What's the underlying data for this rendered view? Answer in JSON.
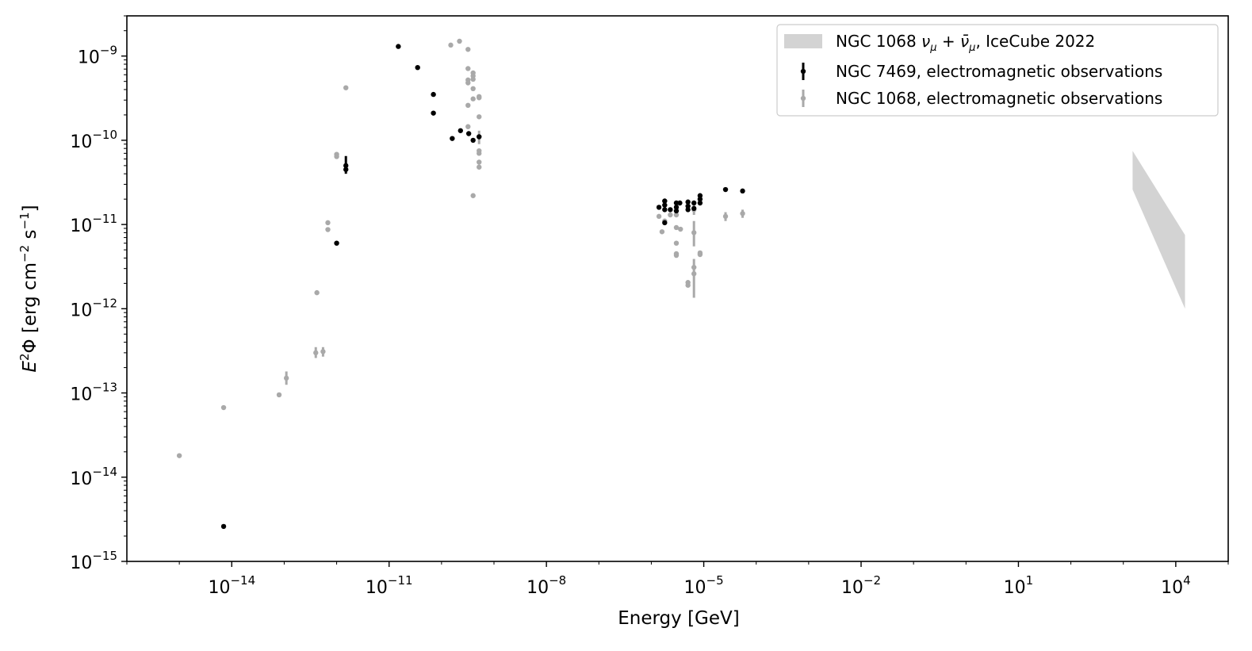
{
  "chart_data": {
    "type": "scatter",
    "title": "",
    "xlabel": "Energy [GeV]",
    "ylabel": "E²Φ [erg cm⁻² s⁻¹]",
    "xscale": "log",
    "yscale": "log",
    "xlim": [
      1e-16,
      100000.0
    ],
    "ylim": [
      1e-15,
      3e-09
    ],
    "grid": false,
    "legend_position": "top-right",
    "x_tick_labels": [
      "10^-14",
      "10^-11",
      "10^-8",
      "10^-5",
      "10^-2",
      "10^1",
      "10^4"
    ],
    "y_tick_labels": [
      "10^-15",
      "10^-14",
      "10^-13",
      "10^-12",
      "10^-11",
      "10^-10",
      "10^-9"
    ],
    "band": {
      "name": "NGC 1068 ν_μ + ν̄_μ, IceCube 2022",
      "color": "#d3d3d3",
      "x": [
        1500.0,
        15000.0
      ],
      "upper": [
        7.5e-11,
        7.5e-12
      ],
      "lower": [
        2.6e-11,
        1e-12
      ]
    },
    "series": [
      {
        "name": "NGC 7469, electromagnetic observations",
        "color": "#000000",
        "points": [
          {
            "x": 7e-15,
            "y": 2.6e-15
          },
          {
            "x": 1e-12,
            "y": 6e-12
          },
          {
            "x": 1.5e-12,
            "y": 5e-11,
            "ylo": 4e-11,
            "yhi": 6.5e-11
          },
          {
            "x": 1.5e-12,
            "y": 4.5e-11
          },
          {
            "x": 1.5e-11,
            "y": 1.3e-09
          },
          {
            "x": 3.5e-11,
            "y": 7.3e-10
          },
          {
            "x": 7e-11,
            "y": 3.5e-10
          },
          {
            "x": 7e-11,
            "y": 2.1e-10
          },
          {
            "x": 1.6e-10,
            "y": 1.05e-10
          },
          {
            "x": 2.3e-10,
            "y": 1.3e-10
          },
          {
            "x": 3.3e-10,
            "y": 1.2e-10
          },
          {
            "x": 4e-10,
            "y": 1e-10
          },
          {
            "x": 5.2e-10,
            "y": 1.1e-10
          },
          {
            "x": 1.4e-06,
            "y": 1.6e-11
          },
          {
            "x": 1.8e-06,
            "y": 1.9e-11
          },
          {
            "x": 1.8e-06,
            "y": 1.7e-11
          },
          {
            "x": 1.8e-06,
            "y": 1.5e-11
          },
          {
            "x": 1.8e-06,
            "y": 1.05e-11
          },
          {
            "x": 2.3e-06,
            "y": 1.5e-11
          },
          {
            "x": 3e-06,
            "y": 1.8e-11
          },
          {
            "x": 3e-06,
            "y": 1.6e-11
          },
          {
            "x": 3e-06,
            "y": 1.45e-11
          },
          {
            "x": 3.5e-06,
            "y": 1.8e-11
          },
          {
            "x": 5e-06,
            "y": 1.85e-11
          },
          {
            "x": 5e-06,
            "y": 1.65e-11
          },
          {
            "x": 5e-06,
            "y": 1.5e-11
          },
          {
            "x": 6.5e-06,
            "y": 1.8e-11
          },
          {
            "x": 6.5e-06,
            "y": 1.55e-11
          },
          {
            "x": 8.5e-06,
            "y": 2.2e-11
          },
          {
            "x": 8.5e-06,
            "y": 2e-11
          },
          {
            "x": 8.5e-06,
            "y": 1.8e-11
          },
          {
            "x": 2.6e-05,
            "y": 2.6e-11
          },
          {
            "x": 5.5e-05,
            "y": 2.5e-11
          }
        ]
      },
      {
        "name": "NGC 1068, electromagnetic observations",
        "color": "#a9a9a9",
        "points": [
          {
            "x": 1e-15,
            "y": 1.8e-14
          },
          {
            "x": 7e-15,
            "y": 6.7e-14
          },
          {
            "x": 8e-14,
            "y": 9.5e-14
          },
          {
            "x": 1.1e-13,
            "y": 1.5e-13,
            "ylo": 1.25e-13,
            "yhi": 1.8e-13
          },
          {
            "x": 4e-13,
            "y": 3e-13,
            "ylo": 2.6e-13,
            "yhi": 3.5e-13
          },
          {
            "x": 5.5e-13,
            "y": 3.1e-13,
            "ylo": 2.7e-13,
            "yhi": 3.5e-13
          },
          {
            "x": 4.2e-13,
            "y": 1.55e-12
          },
          {
            "x": 6.8e-13,
            "y": 1.05e-11
          },
          {
            "x": 6.8e-13,
            "y": 8.7e-12
          },
          {
            "x": 1e-12,
            "y": 6.8e-11
          },
          {
            "x": 1e-12,
            "y": 6.4e-11
          },
          {
            "x": 1.5e-12,
            "y": 4.2e-10
          },
          {
            "x": 1.5e-10,
            "y": 1.35e-09
          },
          {
            "x": 2.2e-10,
            "y": 1.5e-09
          },
          {
            "x": 3.2e-10,
            "y": 1.2e-09
          },
          {
            "x": 3.2e-10,
            "y": 7.1e-10
          },
          {
            "x": 3.2e-10,
            "y": 5.2e-10
          },
          {
            "x": 3.2e-10,
            "y": 4.8e-10
          },
          {
            "x": 3.2e-10,
            "y": 2.6e-10
          },
          {
            "x": 3.2e-10,
            "y": 1.45e-10
          },
          {
            "x": 4e-10,
            "y": 6.3e-10
          },
          {
            "x": 4e-10,
            "y": 5.8e-10
          },
          {
            "x": 4e-10,
            "y": 5.3e-10
          },
          {
            "x": 4e-10,
            "y": 4.1e-10
          },
          {
            "x": 4e-10,
            "y": 3.1e-10
          },
          {
            "x": 4e-10,
            "y": 2.2e-11
          },
          {
            "x": 5.2e-10,
            "y": 3.3e-10
          },
          {
            "x": 5.2e-10,
            "y": 3.2e-10
          },
          {
            "x": 5.2e-10,
            "y": 1.9e-10
          },
          {
            "x": 5.2e-10,
            "y": 1.1e-10,
            "ylo": 9e-11,
            "yhi": 1.3e-10
          },
          {
            "x": 5.2e-10,
            "y": 7.5e-11
          },
          {
            "x": 5.2e-10,
            "y": 7e-11
          },
          {
            "x": 5.2e-10,
            "y": 5.5e-11
          },
          {
            "x": 5.2e-10,
            "y": 4.8e-11
          },
          {
            "x": 1.4e-06,
            "y": 1.25e-11
          },
          {
            "x": 1.6e-06,
            "y": 8.2e-12
          },
          {
            "x": 1.8e-06,
            "y": 1.1e-11
          },
          {
            "x": 2.3e-06,
            "y": 1.3e-11
          },
          {
            "x": 3e-06,
            "y": 1.3e-11
          },
          {
            "x": 3e-06,
            "y": 9.2e-12
          },
          {
            "x": 3e-06,
            "y": 6e-12
          },
          {
            "x": 3e-06,
            "y": 4.5e-12
          },
          {
            "x": 3e-06,
            "y": 4.3e-12
          },
          {
            "x": 3.6e-06,
            "y": 8.8e-12
          },
          {
            "x": 5e-06,
            "y": 2.05e-12
          },
          {
            "x": 5e-06,
            "y": 1.9e-12
          },
          {
            "x": 6.5e-06,
            "y": 1.5e-11,
            "ylo": 1.3e-11,
            "yhi": 1.75e-11
          },
          {
            "x": 6.5e-06,
            "y": 8e-12,
            "ylo": 5.5e-12,
            "yhi": 1.1e-11
          },
          {
            "x": 6.5e-06,
            "y": 3.1e-12
          },
          {
            "x": 6.5e-06,
            "y": 2.6e-12,
            "ylo": 1.35e-12,
            "yhi": 3.9e-12
          },
          {
            "x": 8.5e-06,
            "y": 4.6e-12
          },
          {
            "x": 8.5e-06,
            "y": 4.4e-12
          },
          {
            "x": 2.6e-05,
            "y": 1.25e-11,
            "ylo": 1.1e-11,
            "yhi": 1.4e-11
          },
          {
            "x": 5.5e-05,
            "y": 1.35e-11,
            "ylo": 1.2e-11,
            "yhi": 1.5e-11
          }
        ]
      }
    ]
  },
  "legend": {
    "band_prefix": "NGC 1068 ",
    "band_nu": "ν",
    "band_sub": "μ",
    "band_plus": " + ",
    "band_nubar": "ν̄",
    "band_suffix": ", IceCube 2022",
    "series0": "NGC 7469, electromagnetic observations",
    "series1": "NGC 1068, electromagnetic observations"
  },
  "axis_text": {
    "y_prefix_E": "E",
    "y_sup_2": "2",
    "y_phi": "Φ [erg cm",
    "y_sup_m2": "−2",
    "y_mid": " s",
    "y_sup_m1": "−1",
    "y_suffix": "]"
  }
}
